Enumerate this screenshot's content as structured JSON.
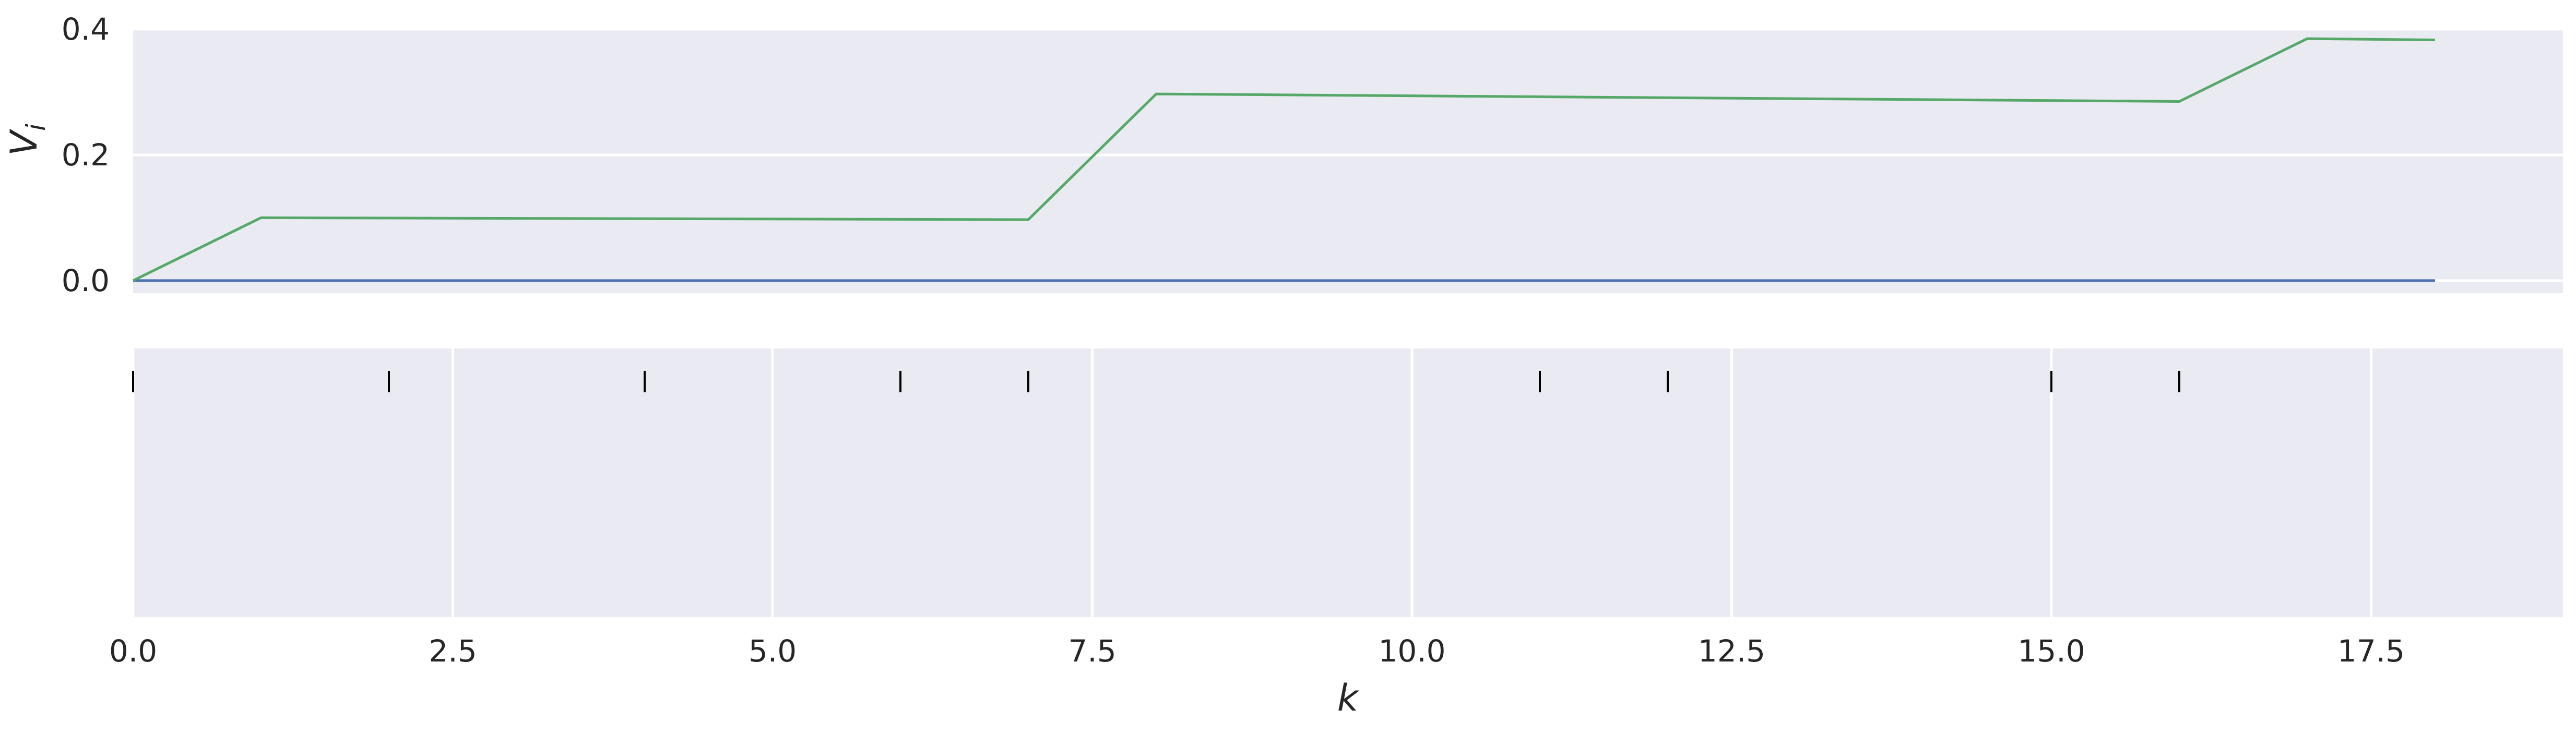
{
  "chart_data": [
    {
      "type": "line",
      "ylabel_main": "V",
      "ylabel_sub": "i",
      "xlim": [
        0,
        19
      ],
      "ylim": [
        -0.02,
        0.4
      ],
      "yticks": [
        0.0,
        0.2,
        0.4
      ],
      "ytick_labels": [
        "0.0",
        "0.2",
        "0.4"
      ],
      "grid": "horizontal",
      "colors": {
        "background": "#eaeaf2",
        "grid": "#ffffff"
      },
      "series": [
        {
          "color": "#4c72b0",
          "x": [
            0,
            18
          ],
          "y": [
            0.0,
            0.0
          ]
        },
        {
          "color": "#55a868",
          "x": [
            0,
            1,
            7,
            8,
            16,
            17,
            18
          ],
          "y": [
            0.0,
            0.1,
            0.097,
            0.297,
            0.285,
            0.385,
            0.383
          ]
        }
      ]
    },
    {
      "type": "scatter",
      "marker": "vertical-tick",
      "xlabel": "k",
      "xlim": [
        0,
        19
      ],
      "xticks": [
        0.0,
        2.5,
        5.0,
        7.5,
        10.0,
        12.5,
        15.0,
        17.5
      ],
      "xtick_labels": [
        "0.0",
        "2.5",
        "5.0",
        "7.5",
        "10.0",
        "12.5",
        "15.0",
        "17.5"
      ],
      "grid": "vertical",
      "colors": {
        "background": "#eaeaf2",
        "grid": "#ffffff",
        "marker": "#000000"
      },
      "x": [
        0,
        2,
        4,
        6,
        7,
        11,
        12,
        15,
        16
      ]
    }
  ]
}
